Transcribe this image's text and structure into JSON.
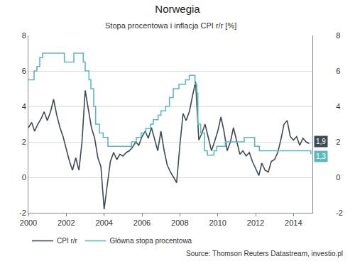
{
  "chart_data": {
    "type": "line",
    "title": "Norwegia",
    "subtitle": "Stopa procentowa i inflacja CPI r/r [%]",
    "source": "Source: Thomson Reuters Datastream, investio.pl",
    "xlim": [
      2000,
      2015
    ],
    "xticks": [
      2000,
      2002,
      2004,
      2006,
      2008,
      2010,
      2012,
      2014
    ],
    "ylim": [
      -2,
      8
    ],
    "yticks": [
      -2,
      0,
      2,
      4,
      6,
      8
    ],
    "y2lim": [
      -2,
      8
    ],
    "y2ticks": [
      -2,
      0,
      2,
      4,
      6,
      8
    ],
    "grid": true,
    "legend": "bottom left",
    "series": [
      {
        "name": "CPI r/r",
        "color": "#3e4a54",
        "line_style": "solid",
        "axis": "y",
        "x": [
          2000,
          2000.17,
          2000.33,
          2000.5,
          2000.67,
          2000.83,
          2001,
          2001.17,
          2001.33,
          2001.5,
          2001.67,
          2001.83,
          2002,
          2002.17,
          2002.33,
          2002.5,
          2002.67,
          2002.83,
          2003,
          2003.17,
          2003.33,
          2003.5,
          2003.67,
          2003.83,
          2004,
          2004.17,
          2004.33,
          2004.5,
          2004.67,
          2004.83,
          2005,
          2005.17,
          2005.33,
          2005.5,
          2005.67,
          2005.83,
          2006,
          2006.17,
          2006.33,
          2006.5,
          2006.67,
          2006.83,
          2007,
          2007.17,
          2007.33,
          2007.5,
          2007.67,
          2007.83,
          2008,
          2008.17,
          2008.33,
          2008.5,
          2008.67,
          2008.83,
          2009,
          2009.17,
          2009.33,
          2009.5,
          2009.67,
          2009.83,
          2010,
          2010.17,
          2010.33,
          2010.5,
          2010.67,
          2010.83,
          2011,
          2011.17,
          2011.33,
          2011.5,
          2011.67,
          2011.83,
          2012,
          2012.17,
          2012.33,
          2012.5,
          2012.67,
          2012.83,
          2013,
          2013.17,
          2013.33,
          2013.5,
          2013.67,
          2013.83,
          2014,
          2014.17,
          2014.33,
          2014.5,
          2014.67,
          2014.83
        ],
        "values": [
          2.8,
          3.1,
          2.6,
          3.0,
          3.3,
          3.7,
          3.2,
          3.7,
          4.4,
          3.5,
          2.8,
          2.3,
          1.6,
          0.9,
          0.4,
          1.1,
          0.4,
          2.0,
          4.9,
          3.8,
          2.8,
          2.2,
          1.1,
          0.6,
          -1.8,
          -0.4,
          0.9,
          1.4,
          1.0,
          1.3,
          1.2,
          1.4,
          1.5,
          1.7,
          2.0,
          1.8,
          2.3,
          2.6,
          2.2,
          2.8,
          2.1,
          1.5,
          2.6,
          1.5,
          0.7,
          0.3,
          0.0,
          -0.3,
          1.8,
          3.6,
          3.2,
          3.7,
          4.6,
          5.4,
          2.1,
          2.5,
          3.0,
          2.2,
          1.5,
          2.0,
          2.6,
          3.4,
          2.6,
          1.5,
          2.0,
          2.8,
          2.0,
          1.3,
          1.5,
          1.2,
          1.4,
          0.9,
          0.5,
          0.1,
          0.8,
          0.4,
          0.3,
          0.9,
          1.0,
          1.4,
          2.1,
          3.0,
          3.2,
          2.3,
          2.1,
          2.3,
          1.8,
          2.2,
          2.0,
          1.9
        ]
      },
      {
        "name": "Główna stopa procentowa",
        "color": "#5db7bd",
        "line_style": "step",
        "axis": "y2",
        "x": [
          2000,
          2000.3,
          2000.45,
          2000.6,
          2000.75,
          2001.9,
          2002.4,
          2002.9,
          2003.0,
          2003.2,
          2003.3,
          2003.45,
          2003.55,
          2003.75,
          2003.95,
          2004.2,
          2005.45,
          2005.7,
          2005.95,
          2006.2,
          2006.45,
          2006.6,
          2006.85,
          2007.0,
          2007.25,
          2007.45,
          2007.65,
          2007.95,
          2008.3,
          2008.5,
          2008.8,
          2008.9,
          2008.95,
          2009.1,
          2009.3,
          2009.45,
          2009.8,
          2009.95,
          2010.4,
          2011.4,
          2011.95,
          2012.2,
          2014.92
        ],
        "values": [
          5.5,
          6.0,
          6.25,
          6.75,
          7.0,
          6.5,
          7.0,
          6.5,
          6.0,
          5.5,
          5.0,
          4.0,
          3.0,
          2.5,
          2.25,
          1.75,
          2.0,
          2.25,
          2.5,
          2.75,
          3.0,
          3.25,
          3.5,
          3.75,
          4.0,
          4.5,
          5.0,
          5.25,
          5.5,
          5.75,
          5.25,
          4.75,
          3.0,
          2.5,
          1.5,
          1.25,
          1.5,
          1.75,
          2.0,
          2.25,
          1.75,
          1.5,
          1.3
        ]
      }
    ],
    "annotations": [
      {
        "text": "1,9",
        "series": "CPI r/r",
        "value": 1.9
      },
      {
        "text": "1,3",
        "series": "Główna stopa procentowa",
        "value": 1.3
      }
    ]
  }
}
